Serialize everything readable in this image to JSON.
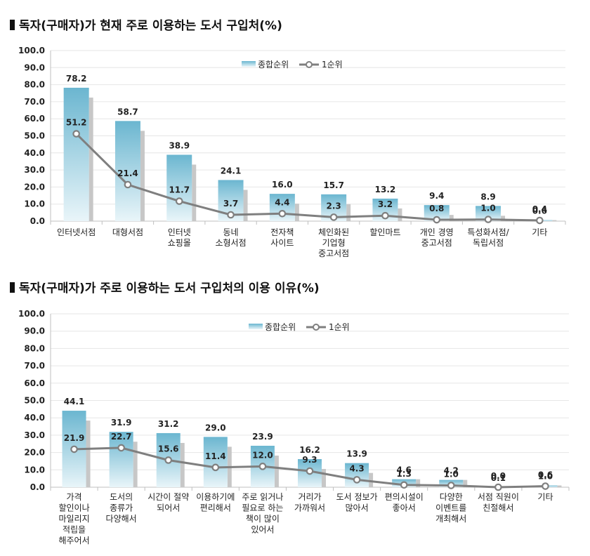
{
  "colors": {
    "bar_top": "#6bb6d0",
    "bar_bottom": "#e9f5f9",
    "bar_shadow": "#c7c7c7",
    "line": "#7f7f7f",
    "marker_fill": "#ffffff",
    "axis": "#bfbfbf"
  },
  "chart_data": [
    {
      "type": "bar",
      "title": "독자(구매자)가 현재 주로 이용하는 도서 구입처(%)",
      "categories": [
        "인터넷서점",
        "대형서점",
        "인터넷\n쇼핑몰",
        "동네\n소형서점",
        "전자책\n사이트",
        "체인화된\n기업형\n중고서점",
        "할인마트",
        "개인 경영\n중고서점",
        "특성화서점/\n독립서점",
        "기타"
      ],
      "series": [
        {
          "name": "종합순위",
          "kind": "bar",
          "values": [
            78.2,
            58.7,
            38.9,
            24.1,
            16.0,
            15.7,
            13.2,
            9.4,
            8.9,
            0.6
          ],
          "labels": [
            "78.2",
            "58.7",
            "38.9",
            "24.1",
            "16.0",
            "15.7",
            "13.2",
            "9.4",
            "8.9",
            "0.6"
          ]
        },
        {
          "name": "1순위",
          "kind": "line",
          "values": [
            51.2,
            21.4,
            11.7,
            3.7,
            4.4,
            2.3,
            3.2,
            0.8,
            1.0,
            0.4
          ],
          "labels": [
            "51.2",
            "21.4",
            "11.7",
            "3.7",
            "4.4",
            "2.3",
            "3.2",
            "0.8",
            "1.0",
            "0.4"
          ]
        }
      ],
      "yticks": [
        "0.0",
        "10.0",
        "20.0",
        "30.0",
        "40.0",
        "50.0",
        "60.0",
        "70.0",
        "80.0",
        "90.0",
        "100.0"
      ],
      "ylim": [
        0,
        100
      ],
      "legend": "top-center"
    },
    {
      "type": "bar",
      "title": "독자(구매자)가 주로 이용하는 도서 구입처의 이용 이유(%)",
      "categories": [
        "가격\n할인이나\n마일리지\n적립을\n해주어서",
        "도서의\n종류가\n다양해서",
        "시간이 절약\n되어서",
        "이용하기에\n편리해서",
        "주로 읽거나\n필요로 하는\n책이 많이\n있어서",
        "거리가\n가까워서",
        "도서 정보가\n많아서",
        "편의시설이\n좋아서",
        "다양한\n이벤트를\n개최해서",
        "서점 직원이\n친절해서",
        "기타"
      ],
      "series": [
        {
          "name": "종합순위",
          "kind": "bar",
          "values": [
            44.1,
            31.9,
            31.2,
            29.0,
            23.9,
            16.2,
            13.9,
            4.6,
            4.2,
            0.1,
            1.0
          ],
          "labels": [
            "44.1",
            "31.9",
            "31.2",
            "29.0",
            "23.9",
            "16.2",
            "13.9",
            "4.6",
            "4.2",
            "0.1",
            "1.0"
          ]
        },
        {
          "name": "1순위",
          "kind": "line",
          "values": [
            21.9,
            22.7,
            15.6,
            11.4,
            12.0,
            9.3,
            4.3,
            1.3,
            1.0,
            0.0,
            0.6
          ],
          "labels": [
            "21.9",
            "22.7",
            "15.6",
            "11.4",
            "12.0",
            "9.3",
            "4.3",
            "1.3",
            "1.0",
            "0.0",
            "0.6"
          ]
        }
      ],
      "yticks": [
        "0.0",
        "10.0",
        "20.0",
        "30.0",
        "40.0",
        "50.0",
        "60.0",
        "70.0",
        "80.0",
        "90.0",
        "100.0"
      ],
      "ylim": [
        0,
        100
      ],
      "legend": "top-center"
    }
  ]
}
